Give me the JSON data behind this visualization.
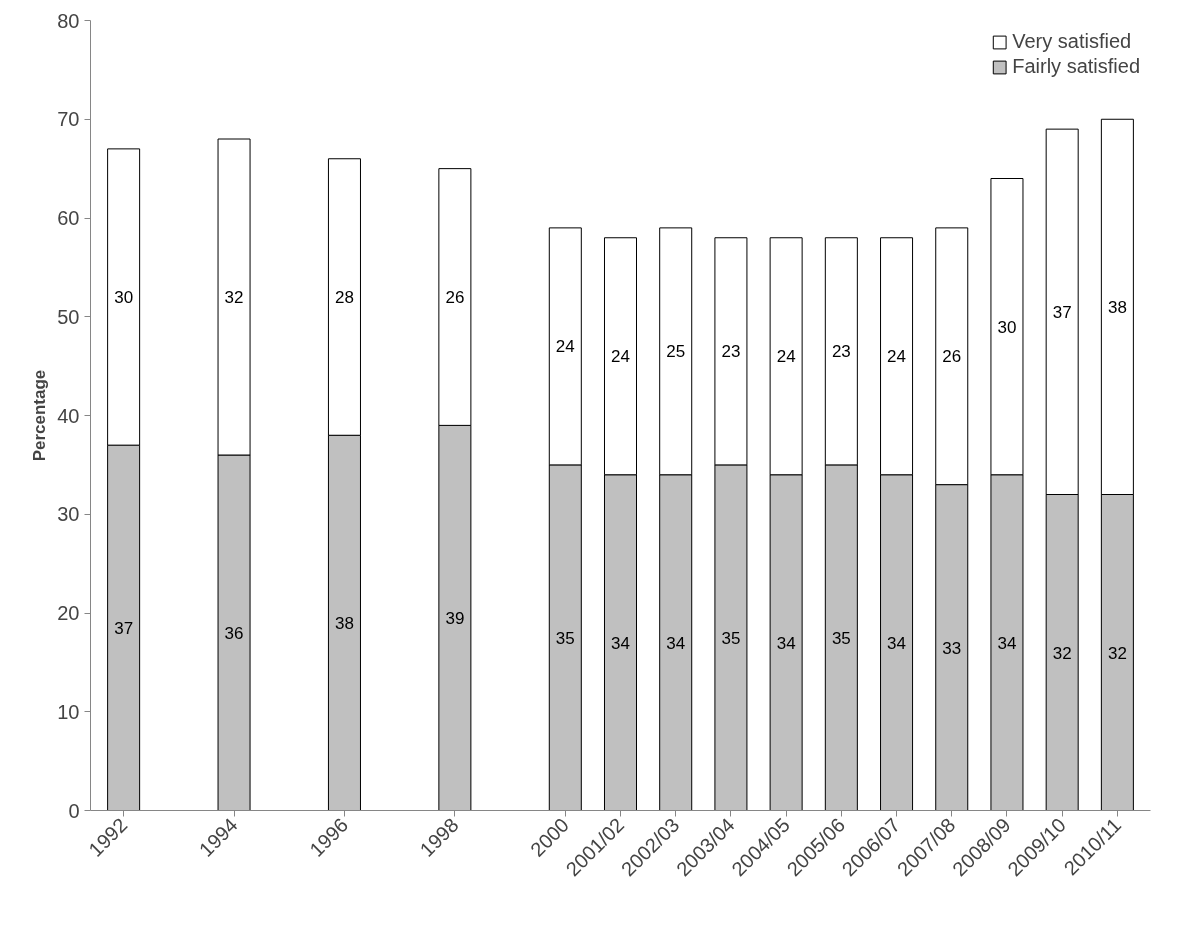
{
  "chart_data": {
    "type": "bar",
    "stacked": true,
    "ylabel": "Percentage",
    "categories": [
      "1992",
      null,
      "1994",
      null,
      "1996",
      null,
      "1998",
      null,
      "2000",
      "2001/02",
      "2002/03",
      "2003/04",
      "2004/05",
      "2005/06",
      "2006/07",
      "2007/08",
      "2008/09",
      "2009/10",
      "2010/11"
    ],
    "series": [
      {
        "name": "Fairly satisfied",
        "color": "#c0c0c0",
        "values": [
          37,
          null,
          36,
          null,
          38,
          null,
          39,
          null,
          35,
          34,
          34,
          35,
          34,
          35,
          34,
          33,
          34,
          32,
          32
        ]
      },
      {
        "name": "Very satisfied",
        "color": "#ffffff",
        "values": [
          30,
          null,
          32,
          null,
          28,
          null,
          26,
          null,
          24,
          24,
          25,
          23,
          24,
          23,
          24,
          26,
          30,
          37,
          38
        ]
      }
    ],
    "ylim": [
      0,
      80
    ],
    "yticks": [
      0,
      10,
      20,
      30,
      40,
      50,
      60,
      70,
      80
    ],
    "data_labels": true,
    "grid": false,
    "legend": "top right"
  }
}
